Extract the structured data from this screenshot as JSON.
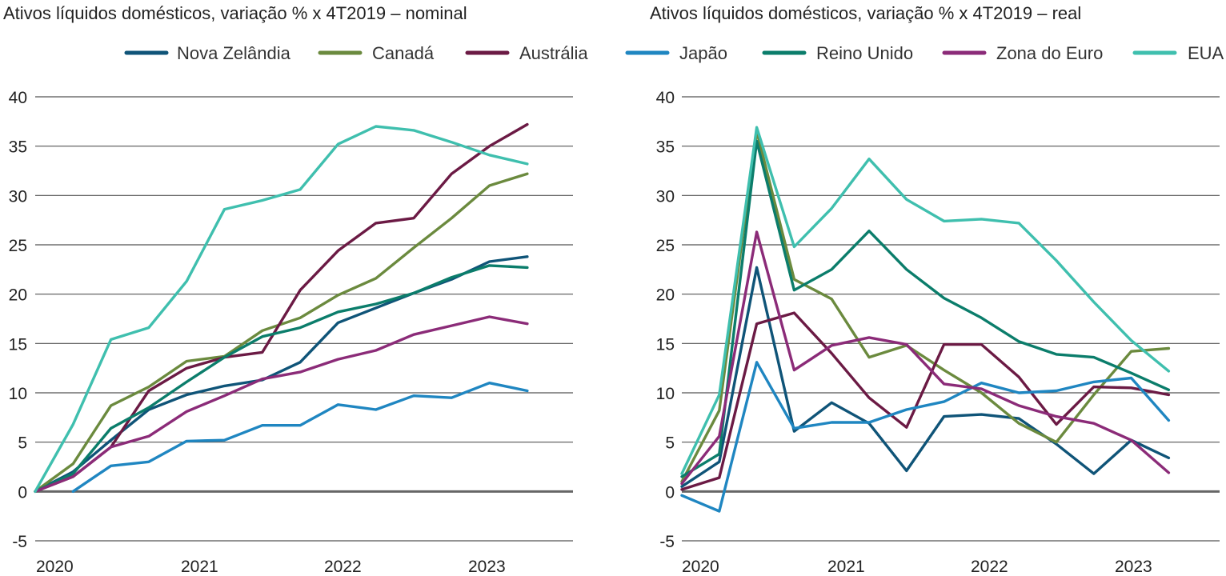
{
  "colors": {
    "Nova Zelândia": "#0f5478",
    "Canadá": "#6b8a3e",
    "Austrália": "#6b1a44",
    "Japão": "#1f86c1",
    "Reino Unido": "#0b7d6b",
    "Zona do Euro": "#8b2b78",
    "EUA": "#3fbfae",
    "grid": "#555555",
    "zero_line": "#666666"
  },
  "legend": {
    "placement": "top",
    "entries": [
      "Nova Zelândia",
      "Canadá",
      "Austrália",
      "Japão",
      "Reino Unido",
      "Zona do Euro",
      "EUA"
    ]
  },
  "chart_data": [
    {
      "type": "line",
      "title": "Ativos líquidos domésticos, variação % x 4T2019 – nominal",
      "x_tick_labels": [
        "2020",
        "2021",
        "2022",
        "2023"
      ],
      "y_tick_labels": [
        "40",
        "35",
        "30",
        "25",
        "20",
        "15",
        "10",
        "5",
        "0",
        "-5"
      ],
      "ylim": [
        -5,
        40
      ],
      "grid": true,
      "series": [
        {
          "name": "Nova Zelândia",
          "values": [
            0,
            2.0,
            5.2,
            8.3,
            9.8,
            10.7,
            11.3,
            13.1,
            17.1,
            18.6,
            20.1,
            21.5,
            23.3,
            23.8
          ]
        },
        {
          "name": "Canadá",
          "values": [
            0,
            2.8,
            8.7,
            10.6,
            13.2,
            13.7,
            16.3,
            17.6,
            19.9,
            21.6,
            24.7,
            27.7,
            31.0,
            32.2
          ]
        },
        {
          "name": "Austrália",
          "values": [
            0,
            1.5,
            4.5,
            10.2,
            12.5,
            13.6,
            14.1,
            20.4,
            24.4,
            27.2,
            27.7,
            32.2,
            35.0,
            37.2
          ]
        },
        {
          "name": "Japão",
          "values": [
            null,
            0,
            2.6,
            3.0,
            5.1,
            5.2,
            6.7,
            6.7,
            8.8,
            8.3,
            9.7,
            9.5,
            11.0,
            10.2
          ]
        },
        {
          "name": "Reino Unido",
          "values": [
            0,
            1.8,
            6.4,
            8.5,
            11.1,
            13.6,
            15.7,
            16.6,
            18.2,
            19.0,
            20.1,
            21.7,
            22.9,
            22.7
          ]
        },
        {
          "name": "Zona do Euro",
          "values": [
            0,
            1.5,
            4.5,
            5.6,
            8.1,
            9.7,
            11.4,
            12.1,
            13.4,
            14.3,
            15.9,
            16.8,
            17.7,
            17.0
          ]
        },
        {
          "name": "EUA",
          "values": [
            0,
            6.8,
            15.4,
            16.6,
            21.3,
            28.6,
            29.5,
            30.6,
            35.2,
            37.0,
            36.6,
            35.4,
            34.1,
            33.2
          ]
        }
      ]
    },
    {
      "type": "line",
      "title": "Ativos líquidos domésticos, variação % x 4T2019 – real",
      "x_tick_labels": [
        "2020",
        "2021",
        "2022",
        "2023"
      ],
      "y_tick_labels": [
        "40",
        "35",
        "30",
        "25",
        "20",
        "15",
        "10",
        "5",
        "0",
        "-5"
      ],
      "ylim": [
        -5,
        40
      ],
      "grid": true,
      "series": [
        {
          "name": "Nova Zelândia",
          "values": [
            0.5,
            3.0,
            22.7,
            6.1,
            9.0,
            6.9,
            2.1,
            7.6,
            7.8,
            7.4,
            4.8,
            1.8,
            5.2,
            3.4
          ]
        },
        {
          "name": "Canadá",
          "values": [
            1.0,
            8.2,
            36.5,
            21.5,
            19.5,
            13.6,
            14.8,
            12.3,
            10.0,
            6.9,
            5.0,
            9.8,
            14.2,
            14.5
          ]
        },
        {
          "name": "Austrália",
          "values": [
            0.2,
            1.4,
            17.0,
            18.1,
            14.0,
            9.5,
            6.5,
            14.9,
            14.9,
            11.6,
            6.8,
            10.6,
            10.5,
            9.8
          ]
        },
        {
          "name": "Japão",
          "values": [
            -0.4,
            -2.0,
            13.1,
            6.4,
            7.0,
            7.0,
            8.3,
            9.1,
            11.0,
            10.0,
            10.2,
            11.1,
            11.5,
            7.2
          ]
        },
        {
          "name": "Reino Unido",
          "values": [
            1.5,
            3.8,
            35.5,
            20.4,
            22.5,
            26.4,
            22.5,
            19.6,
            17.6,
            15.2,
            13.9,
            13.6,
            12.0,
            10.3
          ]
        },
        {
          "name": "Zona do Euro",
          "values": [
            0.8,
            5.6,
            26.3,
            12.3,
            14.8,
            15.6,
            14.9,
            10.9,
            10.4,
            8.7,
            7.6,
            6.9,
            5.2,
            1.9
          ]
        },
        {
          "name": "EUA",
          "values": [
            1.8,
            9.8,
            36.9,
            24.8,
            28.7,
            33.7,
            29.6,
            27.4,
            27.6,
            27.2,
            23.4,
            19.2,
            15.3,
            12.2
          ]
        }
      ]
    }
  ]
}
